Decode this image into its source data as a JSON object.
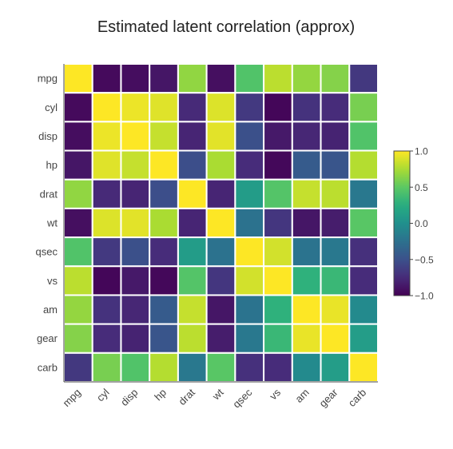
{
  "chart_data": {
    "type": "heatmap",
    "title": "Estimated latent correlation (approx)",
    "variables": [
      "mpg",
      "cyl",
      "disp",
      "hp",
      "drat",
      "wt",
      "qsec",
      "vs",
      "am",
      "gear",
      "carb"
    ],
    "values": [
      [
        1.0,
        -0.95,
        -0.93,
        -0.88,
        0.67,
        -0.92,
        0.45,
        0.8,
        0.68,
        0.63,
        -0.67
      ],
      [
        -0.95,
        1.0,
        0.95,
        0.91,
        -0.76,
        0.9,
        -0.66,
        -0.97,
        -0.71,
        -0.75,
        0.59
      ],
      [
        -0.93,
        0.95,
        1.0,
        0.83,
        -0.79,
        0.92,
        -0.51,
        -0.86,
        -0.78,
        -0.8,
        0.45
      ],
      [
        -0.88,
        0.91,
        0.83,
        1.0,
        -0.52,
        0.75,
        -0.75,
        -0.96,
        -0.42,
        -0.47,
        0.78
      ],
      [
        0.67,
        -0.76,
        -0.79,
        -0.52,
        1.0,
        -0.79,
        0.1,
        0.46,
        0.83,
        0.8,
        -0.19
      ],
      [
        -0.92,
        0.9,
        0.92,
        0.75,
        -0.79,
        1.0,
        -0.24,
        -0.68,
        -0.88,
        -0.84,
        0.48
      ],
      [
        0.45,
        -0.66,
        -0.51,
        -0.75,
        0.1,
        -0.24,
        1.0,
        0.87,
        -0.23,
        -0.19,
        -0.72
      ],
      [
        0.8,
        -0.97,
        -0.86,
        -0.96,
        0.46,
        -0.68,
        0.87,
        1.0,
        0.29,
        0.34,
        -0.75
      ],
      [
        0.68,
        -0.71,
        -0.78,
        -0.42,
        0.83,
        -0.88,
        -0.23,
        0.29,
        1.0,
        0.94,
        -0.05
      ],
      [
        0.63,
        -0.75,
        -0.8,
        -0.47,
        0.8,
        -0.84,
        -0.19,
        0.34,
        0.94,
        1.0,
        0.11
      ],
      [
        -0.67,
        0.59,
        0.45,
        0.78,
        -0.19,
        0.48,
        -0.72,
        -0.75,
        -0.05,
        0.11,
        1.0
      ]
    ],
    "zlim": [
      -1.0,
      1.0
    ],
    "colorscale": "viridis",
    "colorbar": {
      "ticks": [
        1.0,
        0.5,
        0.0,
        -0.5,
        -1.0
      ],
      "tick_labels": [
        "1.0",
        "0.5",
        "0.0",
        "−0.5",
        "−1.0"
      ],
      "placement": "right"
    },
    "cell_gap_color": "#ffffff"
  }
}
